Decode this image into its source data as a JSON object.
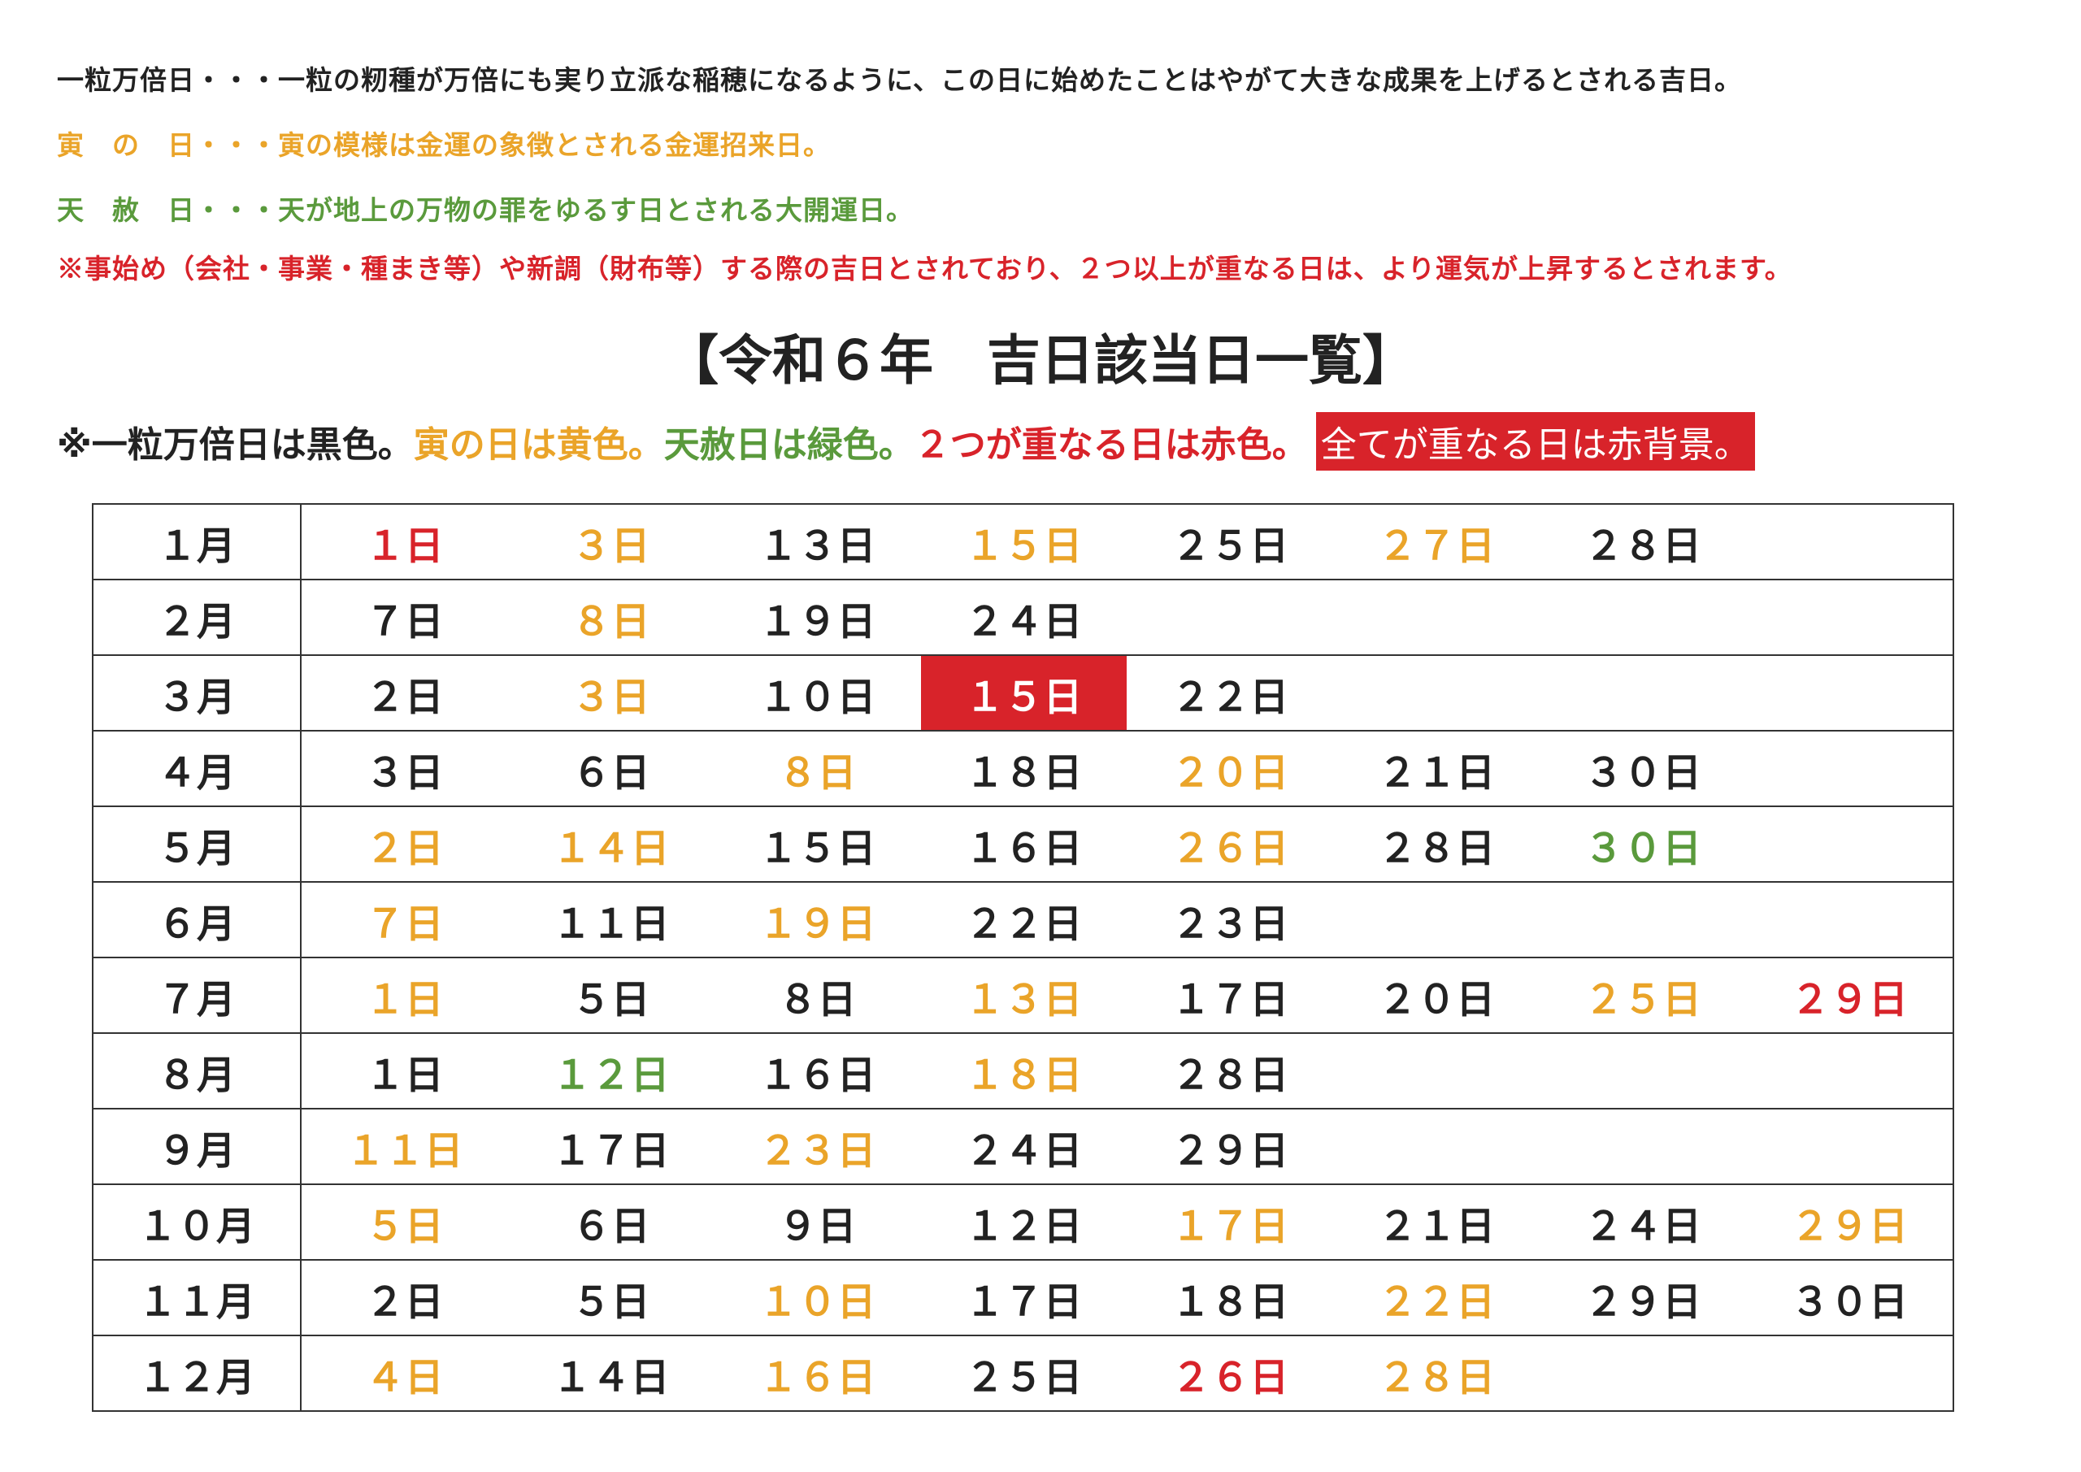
{
  "notes": {
    "line1": "一粒万倍日・・・一粒の籾種が万倍にも実り立派な稲穂になるように、この日に始めたことはやがて大きな成果を上げるとされる吉日。",
    "line2": "寅　の　日・・・寅の模様は金運の象徴とされる金運招来日。",
    "line3": "天　赦　日・・・天が地上の万物の罪をゆるす日とされる大開運日。",
    "line4": "※事始め（会社・事業・種まき等）や新調（財布等）する際の吉日とされており、２つ以上が重なる日は、より運気が上昇するとされます。"
  },
  "title": "【令和６年　吉日該当日一覧】",
  "legend": {
    "black": "※一粒万倍日は黒色。",
    "yellow": "寅の日は黄色。",
    "green": "天赦日は緑色。",
    "red": "２つが重なる日は赤色。",
    "redbg": "全てが重なる日は赤背景。"
  },
  "colors": {
    "black": "#222222",
    "yellow": "#eaa429",
    "green": "#5a9a3c",
    "red": "#d8232a",
    "redbg": "#d8232a"
  },
  "months": [
    {
      "label": "１月",
      "days": [
        {
          "text": "１日",
          "type": "red"
        },
        {
          "text": "３日",
          "type": "yellow"
        },
        {
          "text": "１３日",
          "type": "black"
        },
        {
          "text": "１５日",
          "type": "yellow"
        },
        {
          "text": "２５日",
          "type": "black"
        },
        {
          "text": "２７日",
          "type": "yellow"
        },
        {
          "text": "２８日",
          "type": "black"
        }
      ]
    },
    {
      "label": "２月",
      "days": [
        {
          "text": "７日",
          "type": "black"
        },
        {
          "text": "８日",
          "type": "yellow"
        },
        {
          "text": "１９日",
          "type": "black"
        },
        {
          "text": "２４日",
          "type": "black"
        }
      ]
    },
    {
      "label": "３月",
      "days": [
        {
          "text": "２日",
          "type": "black"
        },
        {
          "text": "３日",
          "type": "yellow"
        },
        {
          "text": "１０日",
          "type": "black"
        },
        {
          "text": "１５日",
          "type": "redbg"
        },
        {
          "text": "２２日",
          "type": "black"
        }
      ]
    },
    {
      "label": "４月",
      "days": [
        {
          "text": "３日",
          "type": "black"
        },
        {
          "text": "６日",
          "type": "black"
        },
        {
          "text": "８日",
          "type": "yellow"
        },
        {
          "text": "１８日",
          "type": "black"
        },
        {
          "text": "２０日",
          "type": "yellow"
        },
        {
          "text": "２１日",
          "type": "black"
        },
        {
          "text": "３０日",
          "type": "black"
        }
      ]
    },
    {
      "label": "５月",
      "days": [
        {
          "text": "２日",
          "type": "yellow"
        },
        {
          "text": "１４日",
          "type": "yellow"
        },
        {
          "text": "１５日",
          "type": "black"
        },
        {
          "text": "１６日",
          "type": "black"
        },
        {
          "text": "２６日",
          "type": "yellow"
        },
        {
          "text": "２８日",
          "type": "black"
        },
        {
          "text": "３０日",
          "type": "green"
        }
      ]
    },
    {
      "label": "６月",
      "days": [
        {
          "text": "７日",
          "type": "yellow"
        },
        {
          "text": "１１日",
          "type": "black"
        },
        {
          "text": "１９日",
          "type": "yellow"
        },
        {
          "text": "２２日",
          "type": "black"
        },
        {
          "text": "２３日",
          "type": "black"
        }
      ]
    },
    {
      "label": "７月",
      "days": [
        {
          "text": "１日",
          "type": "yellow"
        },
        {
          "text": "５日",
          "type": "black"
        },
        {
          "text": "８日",
          "type": "black"
        },
        {
          "text": "１３日",
          "type": "yellow"
        },
        {
          "text": "１７日",
          "type": "black"
        },
        {
          "text": "２０日",
          "type": "black"
        },
        {
          "text": "２５日",
          "type": "yellow"
        },
        {
          "text": "２９日",
          "type": "red"
        }
      ]
    },
    {
      "label": "８月",
      "days": [
        {
          "text": "１日",
          "type": "black"
        },
        {
          "text": "１２日",
          "type": "green"
        },
        {
          "text": "１６日",
          "type": "black"
        },
        {
          "text": "１８日",
          "type": "yellow"
        },
        {
          "text": "２８日",
          "type": "black"
        }
      ]
    },
    {
      "label": "９月",
      "days": [
        {
          "text": "１１日",
          "type": "yellow"
        },
        {
          "text": "１７日",
          "type": "black"
        },
        {
          "text": "２３日",
          "type": "yellow"
        },
        {
          "text": "２４日",
          "type": "black"
        },
        {
          "text": "２９日",
          "type": "black"
        }
      ]
    },
    {
      "label": "１０月",
      "days": [
        {
          "text": "５日",
          "type": "yellow"
        },
        {
          "text": "６日",
          "type": "black"
        },
        {
          "text": "９日",
          "type": "black"
        },
        {
          "text": "１２日",
          "type": "black"
        },
        {
          "text": "１７日",
          "type": "yellow"
        },
        {
          "text": "２１日",
          "type": "black"
        },
        {
          "text": "２４日",
          "type": "black"
        },
        {
          "text": "２９日",
          "type": "yellow"
        }
      ]
    },
    {
      "label": "１１月",
      "days": [
        {
          "text": "２日",
          "type": "black"
        },
        {
          "text": "５日",
          "type": "black"
        },
        {
          "text": "１０日",
          "type": "yellow"
        },
        {
          "text": "１７日",
          "type": "black"
        },
        {
          "text": "１８日",
          "type": "black"
        },
        {
          "text": "２２日",
          "type": "yellow"
        },
        {
          "text": "２９日",
          "type": "black"
        },
        {
          "text": "３０日",
          "type": "black"
        }
      ]
    },
    {
      "label": "１２月",
      "days": [
        {
          "text": "４日",
          "type": "yellow"
        },
        {
          "text": "１４日",
          "type": "black"
        },
        {
          "text": "１６日",
          "type": "yellow"
        },
        {
          "text": "２５日",
          "type": "black"
        },
        {
          "text": "２６日",
          "type": "red"
        },
        {
          "text": "２８日",
          "type": "yellow"
        }
      ]
    }
  ]
}
